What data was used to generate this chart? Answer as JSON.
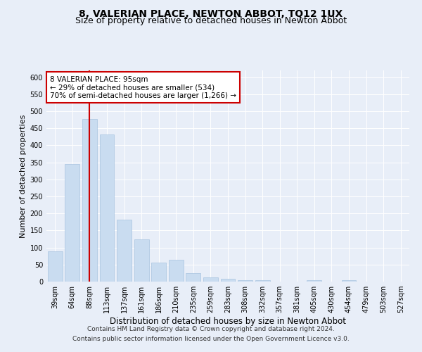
{
  "title": "8, VALERIAN PLACE, NEWTON ABBOT, TQ12 1UX",
  "subtitle": "Size of property relative to detached houses in Newton Abbot",
  "xlabel": "Distribution of detached houses by size in Newton Abbot",
  "ylabel": "Number of detached properties",
  "categories": [
    "39sqm",
    "64sqm",
    "88sqm",
    "113sqm",
    "137sqm",
    "161sqm",
    "186sqm",
    "210sqm",
    "235sqm",
    "259sqm",
    "283sqm",
    "308sqm",
    "332sqm",
    "357sqm",
    "381sqm",
    "405sqm",
    "430sqm",
    "454sqm",
    "479sqm",
    "503sqm",
    "527sqm"
  ],
  "values": [
    88,
    345,
    477,
    432,
    182,
    125,
    55,
    65,
    25,
    12,
    8,
    5,
    5,
    0,
    0,
    5,
    0,
    5,
    0,
    0,
    0
  ],
  "bar_color": "#c9dcf0",
  "bar_edge_color": "#a8c4e0",
  "vline_x_index": 2,
  "vline_color": "#cc0000",
  "annotation_line1": "8 VALERIAN PLACE: 95sqm",
  "annotation_line2": "← 29% of detached houses are smaller (534)",
  "annotation_line3": "70% of semi-detached houses are larger (1,266) →",
  "annotation_box_color": "#ffffff",
  "annotation_box_edge": "#cc0000",
  "ylim": [
    0,
    620
  ],
  "yticks": [
    0,
    50,
    100,
    150,
    200,
    250,
    300,
    350,
    400,
    450,
    500,
    550,
    600
  ],
  "footer1": "Contains HM Land Registry data © Crown copyright and database right 2024.",
  "footer2": "Contains public sector information licensed under the Open Government Licence v3.0.",
  "bg_color": "#e8eef8",
  "plot_bg_color": "#e8eef8",
  "grid_color": "#ffffff",
  "title_fontsize": 10,
  "subtitle_fontsize": 9,
  "xlabel_fontsize": 8.5,
  "ylabel_fontsize": 8,
  "tick_fontsize": 7,
  "annotation_fontsize": 7.5,
  "footer_fontsize": 6.5
}
